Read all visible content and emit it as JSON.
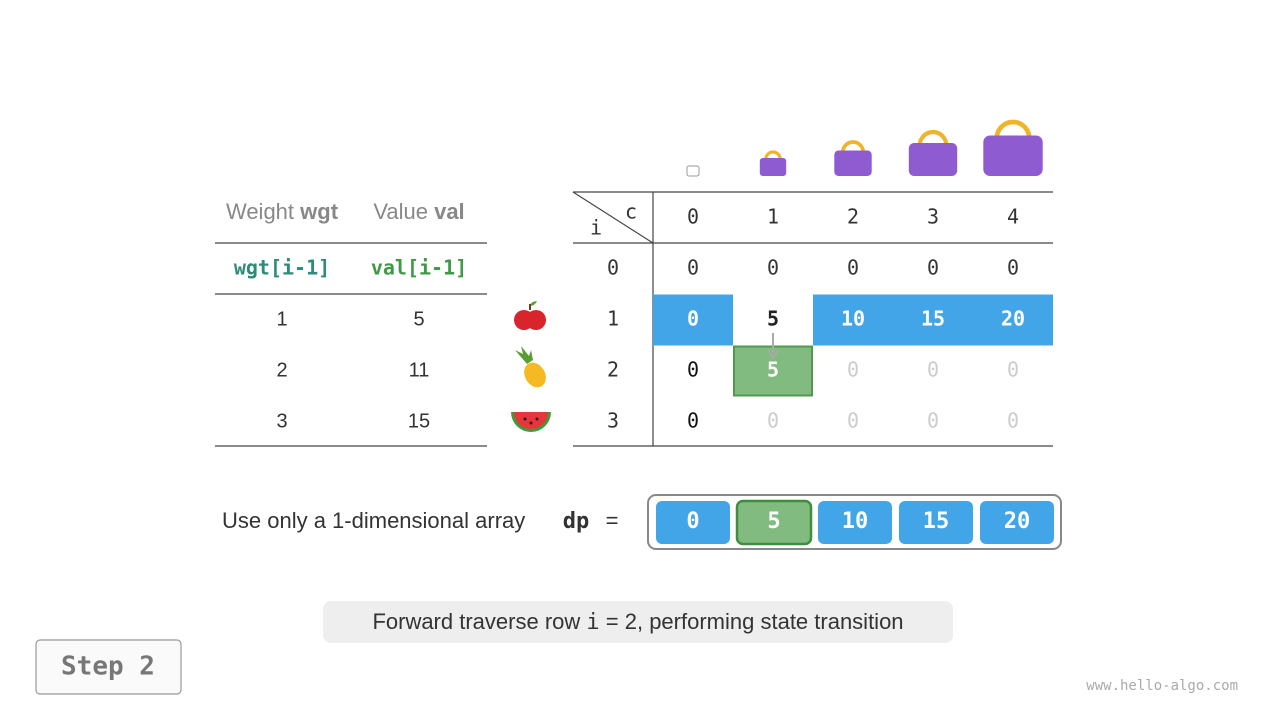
{
  "items_table": {
    "header": {
      "weight": "Weight",
      "weight_var": "wgt",
      "value": "Value",
      "value_var": "val"
    },
    "index_exprs": [
      "wgt[i-1]",
      "val[i-1]"
    ],
    "rows": [
      [
        1,
        5
      ],
      [
        2,
        11
      ],
      [
        3,
        15
      ]
    ]
  },
  "dp_table": {
    "col_header": "c",
    "row_header": "i",
    "capacities": [
      0,
      1,
      2,
      3,
      4
    ],
    "rows": [
      {
        "i": 0,
        "cells": [
          0,
          0,
          0,
          0,
          0
        ]
      },
      {
        "i": 1,
        "cells": [
          0,
          5,
          10,
          15,
          20
        ]
      },
      {
        "i": 2,
        "cells": [
          0,
          5,
          0,
          0,
          0
        ]
      },
      {
        "i": 3,
        "cells": [
          0,
          0,
          0,
          0,
          0
        ]
      }
    ]
  },
  "dp_array": {
    "label": "Use only a 1-dimensional array",
    "name": "dp",
    "equals": "=",
    "values": [
      0,
      5,
      10,
      15,
      20
    ]
  },
  "caption": {
    "before": "Forward traverse row",
    "code": "i",
    "after": "= 2, performing state transition"
  },
  "step": "Step 2",
  "watermark": "www.hello-algo.com"
}
